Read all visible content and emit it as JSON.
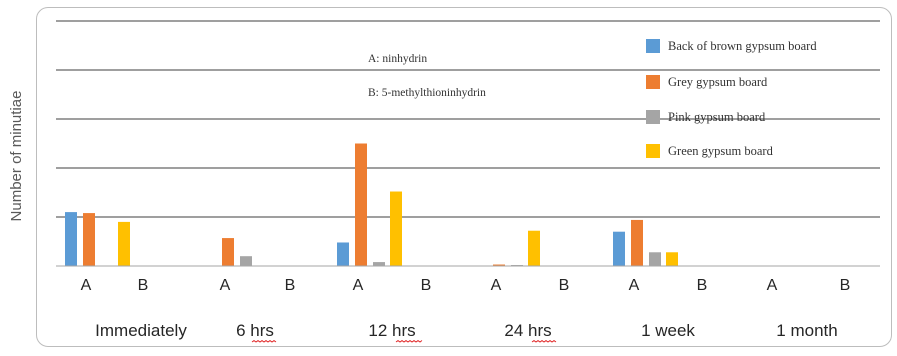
{
  "chart_data": {
    "type": "bar",
    "title": "",
    "xlabel": "",
    "ylabel": "Number of minutiae",
    "ylim": [
      0,
      5
    ],
    "grid": true,
    "gridlines": [
      1,
      2,
      3,
      4,
      5
    ],
    "legend_position": "top-right",
    "categories": [
      "A",
      "B",
      "A",
      "B",
      "A",
      "B",
      "A",
      "B",
      "A",
      "B",
      "A",
      "B"
    ],
    "groups": [
      "Immediately",
      "6 hrs",
      "12 hrs",
      "24 hrs",
      "1 week",
      "1 month"
    ],
    "annotations": [
      "A: ninhydrin",
      "B: 5-methylthioninhydrin"
    ],
    "series": [
      {
        "name": "Back of brown gypsum board",
        "color": "#5b9bd5",
        "values": [
          1.1,
          0,
          0,
          0,
          0.48,
          0,
          0,
          0,
          0.7,
          0,
          0,
          0
        ]
      },
      {
        "name": "Grey gypsum board",
        "color": "#ed7d31",
        "values": [
          1.08,
          0,
          0.57,
          0,
          2.5,
          0,
          0.03,
          0,
          0.94,
          0,
          0,
          0
        ]
      },
      {
        "name": "Pink gypsum board",
        "color": "#a5a5a5",
        "values": [
          0,
          0,
          0.2,
          0,
          0.08,
          0,
          0.02,
          0,
          0.28,
          0,
          0,
          0
        ]
      },
      {
        "name": "Green gypsum board",
        "color": "#ffc000",
        "values": [
          0.9,
          0,
          0,
          0,
          1.52,
          0,
          0.72,
          0,
          0.28,
          0,
          0,
          0
        ]
      }
    ]
  }
}
